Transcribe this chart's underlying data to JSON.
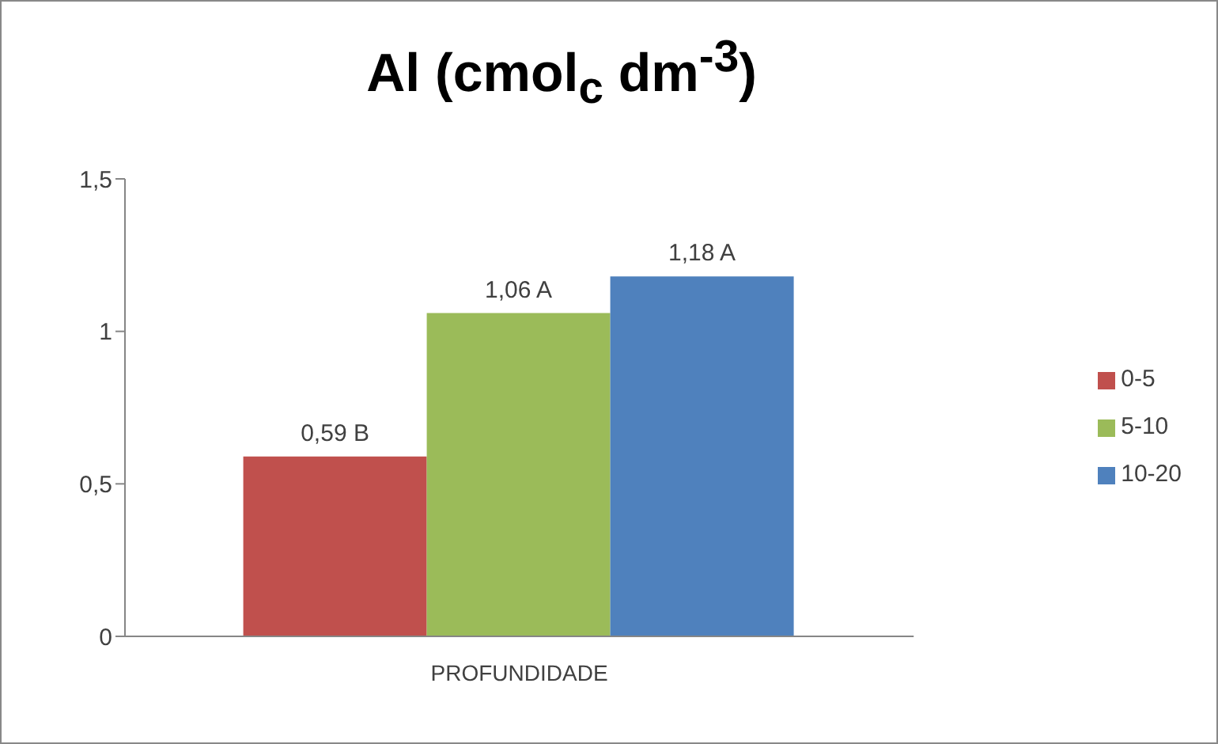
{
  "chart_data": {
    "type": "bar",
    "title": "Al (cmol$_{c}$ dm$^{-3}$)",
    "categories": [
      "PROFUNDIDADE"
    ],
    "series": [
      {
        "name": "0-5",
        "color": "#c0504d",
        "values": [
          0.59
        ],
        "value_labels": [
          "0,59 B"
        ]
      },
      {
        "name": "5-10",
        "color": "#9bbb59",
        "values": [
          1.06
        ],
        "value_labels": [
          "1,06 A"
        ]
      },
      {
        "name": "10-20",
        "color": "#4f81bd",
        "values": [
          1.18
        ],
        "value_labels": [
          "1,18 A"
        ]
      }
    ],
    "ylim": [
      0,
      1.5
    ],
    "yticks": [
      0,
      {
        "value": 0.5,
        "label": "0,5"
      },
      1,
      {
        "value": 1.5,
        "label": "1,5"
      }
    ],
    "grid": false,
    "legend": "right"
  }
}
